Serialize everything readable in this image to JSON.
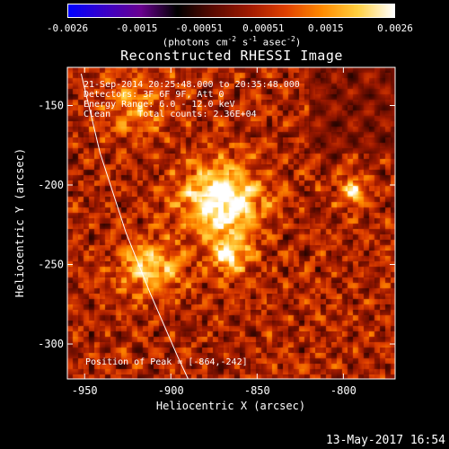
{
  "colorbar": {
    "ticks": [
      "-0.0026",
      "-0.0015",
      "-0.00051",
      "0.00051",
      "0.0015",
      "0.0026"
    ],
    "units_prefix": "(photons cm",
    "units_sup1": "-2",
    "units_mid1": " s",
    "units_sup2": "-1",
    "units_mid2": " asec",
    "units_sup3": "-2",
    "units_suffix": ")",
    "colormap": [
      "#0000ff",
      "#3a00c8",
      "#6a0090",
      "#000000",
      "#5a0a00",
      "#a01a00",
      "#e04000",
      "#ff8a00",
      "#ffd040",
      "#ffffff"
    ]
  },
  "chart_data": {
    "type": "heatmap",
    "title": "Reconstructed RHESSI Image",
    "xlabel": "Heliocentric X (arcsec)",
    "ylabel": "Heliocentric Y (arcsec)",
    "xlim": [
      -960,
      -770
    ],
    "ylim": [
      -322,
      -126
    ],
    "xticks": [
      -950,
      -900,
      -850,
      -800
    ],
    "yticks": [
      -150,
      -200,
      -250,
      -300
    ],
    "value_range": [
      -0.0026,
      0.0026
    ],
    "peak": [
      -864,
      -242
    ],
    "sources": [
      {
        "x": -871,
        "y": -210,
        "value": 0.0026,
        "sigma": 16
      },
      {
        "x": -866,
        "y": -244,
        "value": 0.0019,
        "sigma": 8
      },
      {
        "x": -912,
        "y": -252,
        "value": 0.0017,
        "sigma": 12
      },
      {
        "x": -795,
        "y": -204,
        "value": 0.0017,
        "sigma": 6
      },
      {
        "x": -920,
        "y": -150,
        "value": 0.001,
        "sigma": 14
      }
    ],
    "limb_line": [
      [
        -952,
        -130
      ],
      [
        -941,
        -180
      ],
      [
        -926,
        -230
      ],
      [
        -912,
        -268
      ],
      [
        -896,
        -308
      ],
      [
        -890,
        -322
      ]
    ],
    "annotations": {
      "time_range": "21-Sep-2014 20:25:48.000 to 20:35:48.000",
      "detectors": "Detectors: 3F 6F 9F, Att 0",
      "energy": "Energy Range: 6.0 - 12.0 keV",
      "clean": "Clean     Total counts: 2.36E+04",
      "peak_text": "Position of Peak = [-864,-242]"
    }
  },
  "footer": {
    "date": "13-May-2017 16:54"
  }
}
